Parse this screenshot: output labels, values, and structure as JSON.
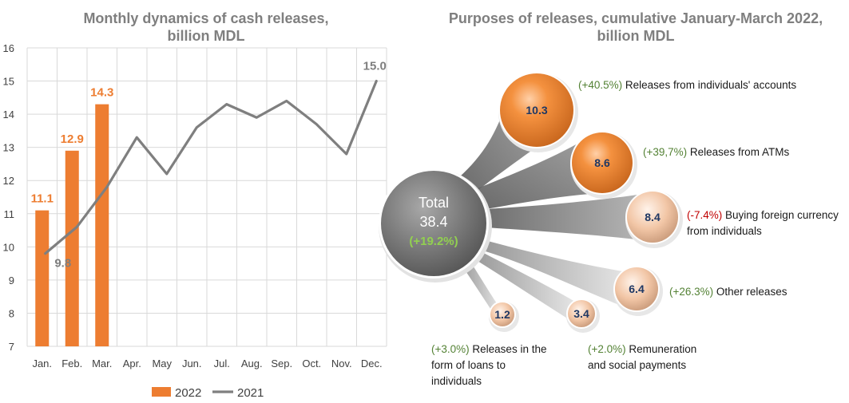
{
  "colors": {
    "bar_2022": "#ed7d31",
    "line_2021": "#7f7f7f",
    "grid": "#d9d9d9",
    "positive": "#548235",
    "negative": "#c00000",
    "total_pct": "#92d050"
  },
  "chart_data": [
    {
      "type": "bar+line",
      "title_lines": [
        "Monthly dynamics of cash releases,",
        "billion MDL"
      ],
      "categories": [
        "Jan.",
        "Feb.",
        "Mar.",
        "Apr.",
        "May",
        "Jun.",
        "Jul.",
        "Aug.",
        "Sep.",
        "Oct.",
        "Nov.",
        "Dec."
      ],
      "series": [
        {
          "name": "2022",
          "kind": "bar",
          "values": [
            11.1,
            12.9,
            14.3,
            null,
            null,
            null,
            null,
            null,
            null,
            null,
            null,
            null
          ],
          "data_labels": [
            "11.1",
            "12.9",
            "14.3"
          ]
        },
        {
          "name": "2021",
          "kind": "line",
          "values": [
            9.8,
            10.6,
            11.8,
            13.3,
            12.2,
            13.6,
            14.3,
            13.9,
            14.4,
            13.7,
            12.8,
            15.0
          ],
          "data_labels": {
            "0": "9.8",
            "11": "15.0"
          }
        }
      ],
      "ylim": [
        7,
        16
      ],
      "yticks": [
        "7",
        "8",
        "9",
        "10",
        "11",
        "12",
        "13",
        "14",
        "15",
        "16"
      ],
      "grid": true,
      "legend_position": "bottom"
    },
    {
      "type": "bubble",
      "title_lines": [
        "Purposes of releases, cumulative January-March 2022,",
        "billion MDL"
      ],
      "total": {
        "label": "Total",
        "value": "38.4",
        "change": "(+19.2%)"
      },
      "items": [
        {
          "value": "10.3",
          "change": "(+40.5%)",
          "sign": "pos",
          "label_lines": [
            "Releases from individuals' accounts"
          ]
        },
        {
          "value": "8.6",
          "change": "(+39,7%)",
          "sign": "pos",
          "label_lines": [
            "Releases from ATMs"
          ]
        },
        {
          "value": "8.4",
          "change": "(-7.4%)",
          "sign": "neg",
          "label_lines": [
            "Buying foreign currency",
            "from individuals"
          ]
        },
        {
          "value": "6.4",
          "change": "(+26.3%)",
          "sign": "pos",
          "label_lines": [
            "Other releases"
          ]
        },
        {
          "value": "3.4",
          "change": "(+2.0%)",
          "sign": "pos",
          "label_lines": [
            "Remuneration",
            "and social payments"
          ]
        },
        {
          "value": "1.2",
          "change": "(+3.0%)",
          "sign": "pos",
          "label_lines": [
            "Releases in the",
            "form of loans to",
            "individuals"
          ]
        }
      ]
    }
  ]
}
